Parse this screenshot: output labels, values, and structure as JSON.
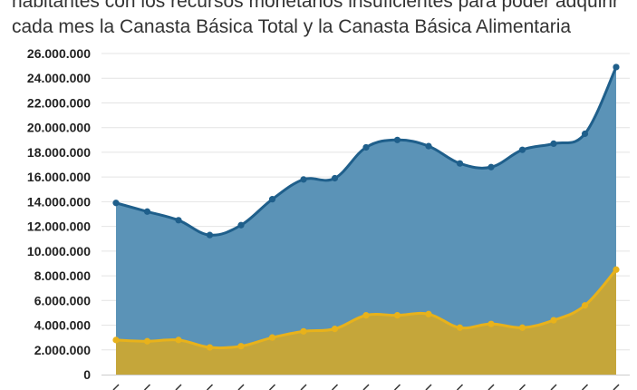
{
  "chart_data": {
    "type": "area",
    "subtitle_lines": [
      "habitantes con los recursos monetarios insuficientes para poder adquirir",
      "cada mes la Canasta Básica Total y la Canasta Básica Alimentaria"
    ],
    "ylim": [
      0,
      26000000
    ],
    "yticks": [
      "0",
      "2.000.000",
      "4.000.000",
      "6.000.000",
      "8.000.000",
      "10.000.000",
      "12.000.000",
      "14.000.000",
      "16.000.000",
      "18.000.000",
      "20.000.000",
      "22.000.000",
      "24.000.000",
      "26.000.000"
    ],
    "grid": true,
    "series": [
      {
        "color": "#1f5f8b",
        "fill": "#5b93b7",
        "values": [
          13900000,
          13200000,
          12500000,
          11300000,
          12100000,
          14200000,
          15800000,
          15900000,
          18400000,
          19000000,
          18500000,
          17100000,
          16800000,
          18200000,
          18700000,
          19500000,
          24900000
        ]
      },
      {
        "color": "#e8b21b",
        "fill": "#c5a63a",
        "values": [
          2800000,
          2700000,
          2800000,
          2200000,
          2300000,
          3000000,
          3500000,
          3700000,
          4800000,
          4800000,
          4900000,
          3800000,
          4100000,
          3800000,
          4400000,
          5600000,
          8500000
        ]
      }
    ]
  }
}
